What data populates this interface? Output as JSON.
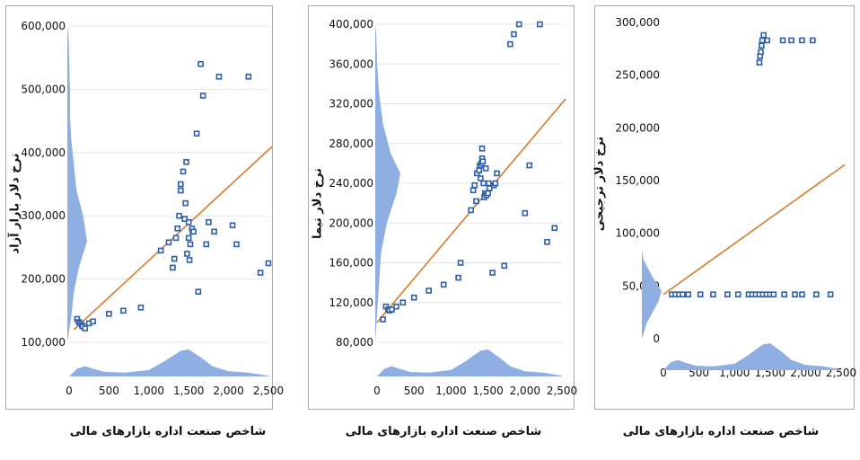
{
  "chart_data": [
    {
      "type": "scatter",
      "xlabel": "شاخص صنعت اداره بازارهای مالی",
      "ylabel": "نرخ دلار بازار آزاد",
      "xlim": [
        0,
        2500
      ],
      "ylim": [
        100000,
        600000
      ],
      "xticks": [
        0,
        500,
        1000,
        1500,
        2000,
        2500
      ],
      "xtick_labels": [
        "0",
        "500",
        "1,000",
        "1,500",
        "2,000",
        "2,500"
      ],
      "yticks": [
        100000,
        200000,
        300000,
        400000,
        500000,
        600000
      ],
      "ytick_labels": [
        "100,000",
        "200,000",
        "300,000",
        "400,000",
        "500,000",
        "600,000"
      ],
      "grid": true,
      "marker_color": "#2e5fa8",
      "trend_color": "#d97b2b",
      "density_color": "#8fafe3",
      "trendline": [
        [
          60,
          120000
        ],
        [
          2550,
          410000
        ]
      ],
      "points": [
        [
          100,
          137000
        ],
        [
          120,
          132000
        ],
        [
          140,
          130000
        ],
        [
          160,
          127000
        ],
        [
          170,
          125000
        ],
        [
          200,
          122000
        ],
        [
          250,
          130000
        ],
        [
          300,
          133000
        ],
        [
          500,
          145000
        ],
        [
          680,
          150000
        ],
        [
          900,
          155000
        ],
        [
          1150,
          245000
        ],
        [
          1250,
          258000
        ],
        [
          1300,
          218000
        ],
        [
          1320,
          232000
        ],
        [
          1340,
          265000
        ],
        [
          1360,
          280000
        ],
        [
          1380,
          300000
        ],
        [
          1400,
          350000
        ],
        [
          1400,
          340000
        ],
        [
          1430,
          370000
        ],
        [
          1450,
          295000
        ],
        [
          1460,
          320000
        ],
        [
          1470,
          385000
        ],
        [
          1480,
          240000
        ],
        [
          1500,
          265000
        ],
        [
          1500,
          290000
        ],
        [
          1510,
          230000
        ],
        [
          1520,
          255000
        ],
        [
          1540,
          280000
        ],
        [
          1550,
          275000
        ],
        [
          1560,
          275000
        ],
        [
          1600,
          430000
        ],
        [
          1620,
          180000
        ],
        [
          1650,
          540000
        ],
        [
          1680,
          490000
        ],
        [
          1720,
          255000
        ],
        [
          1750,
          290000
        ],
        [
          1820,
          275000
        ],
        [
          1880,
          520000
        ],
        [
          2050,
          285000
        ],
        [
          2100,
          255000
        ],
        [
          2250,
          520000
        ],
        [
          2400,
          210000
        ],
        [
          2500,
          225000
        ]
      ],
      "y_density": [
        [
          100000,
          0
        ],
        [
          140000,
          3
        ],
        [
          180000,
          5
        ],
        [
          220000,
          9
        ],
        [
          260000,
          15
        ],
        [
          300000,
          12
        ],
        [
          340000,
          7
        ],
        [
          380000,
          5
        ],
        [
          420000,
          3
        ],
        [
          460000,
          2
        ],
        [
          500000,
          2
        ],
        [
          540000,
          1.5
        ],
        [
          580000,
          1
        ],
        [
          600000,
          0
        ]
      ],
      "x_density": [
        [
          0,
          0
        ],
        [
          100,
          0.6
        ],
        [
          200,
          0.8
        ],
        [
          300,
          0.6
        ],
        [
          450,
          0.35
        ],
        [
          700,
          0.3
        ],
        [
          1000,
          0.5
        ],
        [
          1200,
          1.2
        ],
        [
          1400,
          2.0
        ],
        [
          1500,
          2.1
        ],
        [
          1650,
          1.5
        ],
        [
          1800,
          0.8
        ],
        [
          2000,
          0.4
        ],
        [
          2250,
          0.3
        ],
        [
          2500,
          0.05
        ]
      ]
    },
    {
      "type": "scatter",
      "xlabel": "شاخص صنعت اداره بازارهای مالی",
      "ylabel": "نرخ دلار نیما",
      "xlim": [
        0,
        2500
      ],
      "ylim": [
        80000,
        400000
      ],
      "xticks": [
        0,
        500,
        1000,
        1500,
        2000,
        2500
      ],
      "xtick_labels": [
        "0",
        "500",
        "1,000",
        "1,500",
        "2,000",
        "2,500"
      ],
      "yticks": [
        80000,
        120000,
        160000,
        200000,
        240000,
        280000,
        320000,
        360000,
        400000
      ],
      "ytick_labels": [
        "80,000",
        "120,000",
        "160,000",
        "200,000",
        "240,000",
        "280,000",
        "320,000",
        "360,000",
        "400,000"
      ],
      "grid": true,
      "marker_color": "#2e5fa8",
      "trend_color": "#d97b2b",
      "density_color": "#8fafe3",
      "trendline": [
        [
          0,
          100000
        ],
        [
          2550,
          325000
        ]
      ],
      "points": [
        [
          80,
          103000
        ],
        [
          120,
          116000
        ],
        [
          150,
          113000
        ],
        [
          170,
          112000
        ],
        [
          200,
          113000
        ],
        [
          260,
          116000
        ],
        [
          350,
          120000
        ],
        [
          500,
          125000
        ],
        [
          700,
          132000
        ],
        [
          900,
          138000
        ],
        [
          1100,
          145000
        ],
        [
          1130,
          160000
        ],
        [
          1270,
          213000
        ],
        [
          1300,
          233000
        ],
        [
          1320,
          238000
        ],
        [
          1340,
          222000
        ],
        [
          1350,
          250000
        ],
        [
          1380,
          253000
        ],
        [
          1390,
          258000
        ],
        [
          1400,
          245000
        ],
        [
          1410,
          260000
        ],
        [
          1420,
          265000
        ],
        [
          1420,
          275000
        ],
        [
          1430,
          262000
        ],
        [
          1440,
          240000
        ],
        [
          1450,
          226000
        ],
        [
          1460,
          230000
        ],
        [
          1470,
          255000
        ],
        [
          1480,
          228000
        ],
        [
          1500,
          230000
        ],
        [
          1510,
          240000
        ],
        [
          1520,
          235000
        ],
        [
          1560,
          150000
        ],
        [
          1580,
          238000
        ],
        [
          1600,
          240000
        ],
        [
          1620,
          250000
        ],
        [
          1720,
          157000
        ],
        [
          1800,
          380000
        ],
        [
          1850,
          390000
        ],
        [
          1920,
          400000
        ],
        [
          2000,
          210000
        ],
        [
          2060,
          258000
        ],
        [
          2200,
          400000
        ],
        [
          2300,
          181000
        ],
        [
          2400,
          195000
        ]
      ],
      "y_density": [
        [
          80000,
          0
        ],
        [
          110000,
          1
        ],
        [
          140000,
          2
        ],
        [
          170000,
          3
        ],
        [
          200000,
          6
        ],
        [
          230000,
          11
        ],
        [
          250000,
          13
        ],
        [
          270000,
          8
        ],
        [
          300000,
          4
        ],
        [
          330000,
          2
        ],
        [
          360000,
          1
        ],
        [
          390000,
          0.5
        ],
        [
          400000,
          0
        ]
      ],
      "x_density": [
        [
          0,
          0
        ],
        [
          100,
          0.6
        ],
        [
          200,
          0.8
        ],
        [
          300,
          0.6
        ],
        [
          450,
          0.35
        ],
        [
          700,
          0.3
        ],
        [
          1000,
          0.5
        ],
        [
          1200,
          1.2
        ],
        [
          1400,
          2.0
        ],
        [
          1500,
          2.1
        ],
        [
          1650,
          1.5
        ],
        [
          1800,
          0.8
        ],
        [
          2000,
          0.4
        ],
        [
          2250,
          0.3
        ],
        [
          2500,
          0.05
        ]
      ]
    },
    {
      "type": "scatter",
      "xlabel": "شاخص صنعت اداره بازارهای مالی",
      "ylabel": "نرخ دلار ترجیحی",
      "xlim": [
        0,
        2500
      ],
      "ylim": [
        0,
        300000
      ],
      "xticks": [
        0,
        500,
        1000,
        1500,
        2000,
        2500
      ],
      "xtick_labels": [
        "0",
        "500",
        "1,000",
        "1,500",
        "2,000",
        "2,500"
      ],
      "yticks": [
        0,
        50000,
        100000,
        150000,
        200000,
        250000,
        300000
      ],
      "ytick_labels": [
        "0",
        "50,000",
        "100,000",
        "150,000",
        "200,000",
        "250,000",
        "300,000"
      ],
      "grid": false,
      "marker_color": "#2e5fa8",
      "trend_color": "#d97b2b",
      "density_color": "#8fafe3",
      "trendline": [
        [
          0,
          42000
        ],
        [
          2550,
          165000
        ]
      ],
      "points": [
        [
          120,
          42000
        ],
        [
          170,
          42000
        ],
        [
          220,
          42000
        ],
        [
          270,
          42000
        ],
        [
          350,
          42000
        ],
        [
          520,
          42000
        ],
        [
          700,
          42000
        ],
        [
          900,
          42000
        ],
        [
          1050,
          42000
        ],
        [
          1200,
          42000
        ],
        [
          1250,
          42000
        ],
        [
          1300,
          42000
        ],
        [
          1350,
          42000
        ],
        [
          1400,
          42000
        ],
        [
          1450,
          42000
        ],
        [
          1500,
          42000
        ],
        [
          1550,
          42000
        ],
        [
          1700,
          42000
        ],
        [
          1850,
          42000
        ],
        [
          1950,
          42000
        ],
        [
          2150,
          42000
        ],
        [
          2350,
          42000
        ],
        [
          1350,
          262000
        ],
        [
          1360,
          268000
        ],
        [
          1370,
          272000
        ],
        [
          1380,
          278000
        ],
        [
          1390,
          283000
        ],
        [
          1410,
          288000
        ],
        [
          1460,
          283000
        ],
        [
          1680,
          283000
        ],
        [
          1800,
          283000
        ],
        [
          1950,
          283000
        ],
        [
          2100,
          283000
        ]
      ],
      "y_density": [
        [
          0,
          0
        ],
        [
          15000,
          3
        ],
        [
          35000,
          10
        ],
        [
          45000,
          12
        ],
        [
          60000,
          6
        ],
        [
          75000,
          1
        ],
        [
          85000,
          0
        ]
      ],
      "x_density": [
        [
          0,
          0
        ],
        [
          100,
          0.6
        ],
        [
          200,
          0.8
        ],
        [
          300,
          0.6
        ],
        [
          450,
          0.35
        ],
        [
          700,
          0.3
        ],
        [
          1000,
          0.5
        ],
        [
          1200,
          1.2
        ],
        [
          1400,
          2.0
        ],
        [
          1500,
          2.1
        ],
        [
          1650,
          1.5
        ],
        [
          1800,
          0.8
        ],
        [
          2000,
          0.4
        ],
        [
          2250,
          0.3
        ],
        [
          2500,
          0.05
        ]
      ]
    }
  ]
}
